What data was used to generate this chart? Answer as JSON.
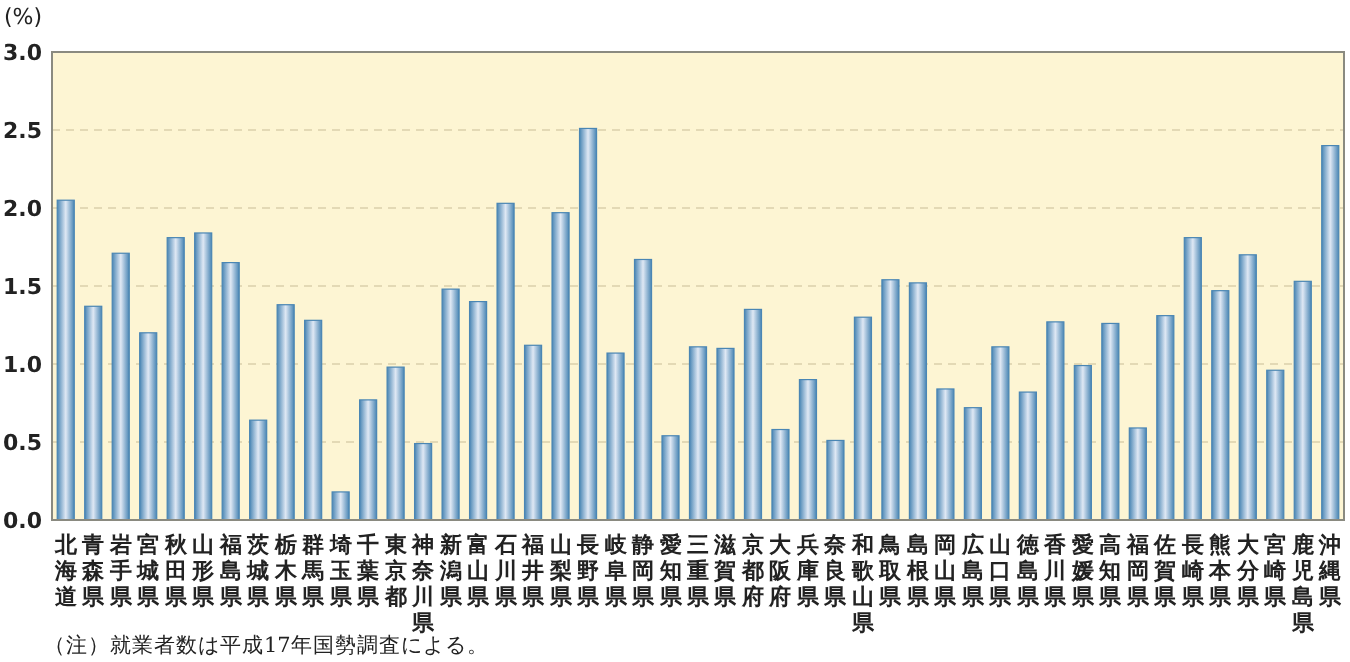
{
  "chart_data": {
    "type": "bar",
    "ylabel": "(%)",
    "categories": [
      "北海道",
      "青森県",
      "岩手県",
      "宮城県",
      "秋田県",
      "山形県",
      "福島県",
      "茨城県",
      "栃木県",
      "群馬県",
      "埼玉県",
      "千葉県",
      "東京都",
      "神奈川県",
      "新潟県",
      "富山県",
      "石川県",
      "福井県",
      "山梨県",
      "長野県",
      "岐阜県",
      "静岡県",
      "愛知県",
      "三重県",
      "滋賀県",
      "京都府",
      "大阪府",
      "兵庫県",
      "奈良県",
      "和歌山県",
      "鳥取県",
      "島根県",
      "岡山県",
      "広島県",
      "山口県",
      "徳島県",
      "香川県",
      "愛媛県",
      "高知県",
      "福岡県",
      "佐賀県",
      "長崎県",
      "熊本県",
      "大分県",
      "宮崎県",
      "鹿児島県",
      "沖縄県"
    ],
    "values": [
      2.05,
      1.37,
      1.71,
      1.2,
      1.81,
      1.84,
      1.65,
      0.64,
      1.38,
      1.28,
      0.18,
      0.77,
      0.98,
      0.49,
      1.48,
      1.4,
      2.03,
      1.12,
      1.97,
      2.51,
      1.07,
      1.67,
      0.54,
      1.11,
      1.1,
      1.35,
      0.58,
      0.9,
      0.51,
      1.3,
      1.54,
      1.52,
      0.84,
      0.72,
      1.11,
      0.82,
      1.27,
      0.99,
      1.26,
      0.59,
      1.31,
      1.81,
      1.47,
      1.7,
      0.96,
      1.53,
      2.4
    ],
    "color": "#4a86b4",
    "ylim": [
      0,
      3
    ],
    "yticks": [
      {
        "value": 0,
        "label": "0.0"
      },
      {
        "value": 0.5,
        "label": "0.5"
      },
      {
        "value": 1,
        "label": "1.0"
      },
      {
        "value": 1.5,
        "label": "1.5"
      },
      {
        "value": 2,
        "label": "2.0"
      },
      {
        "value": 2.5,
        "label": "2.5"
      },
      {
        "value": 3,
        "label": "3.0"
      }
    ],
    "grid": "y",
    "annotations": [
      "（注）就業者数は平成17年国勢調査による。"
    ]
  }
}
